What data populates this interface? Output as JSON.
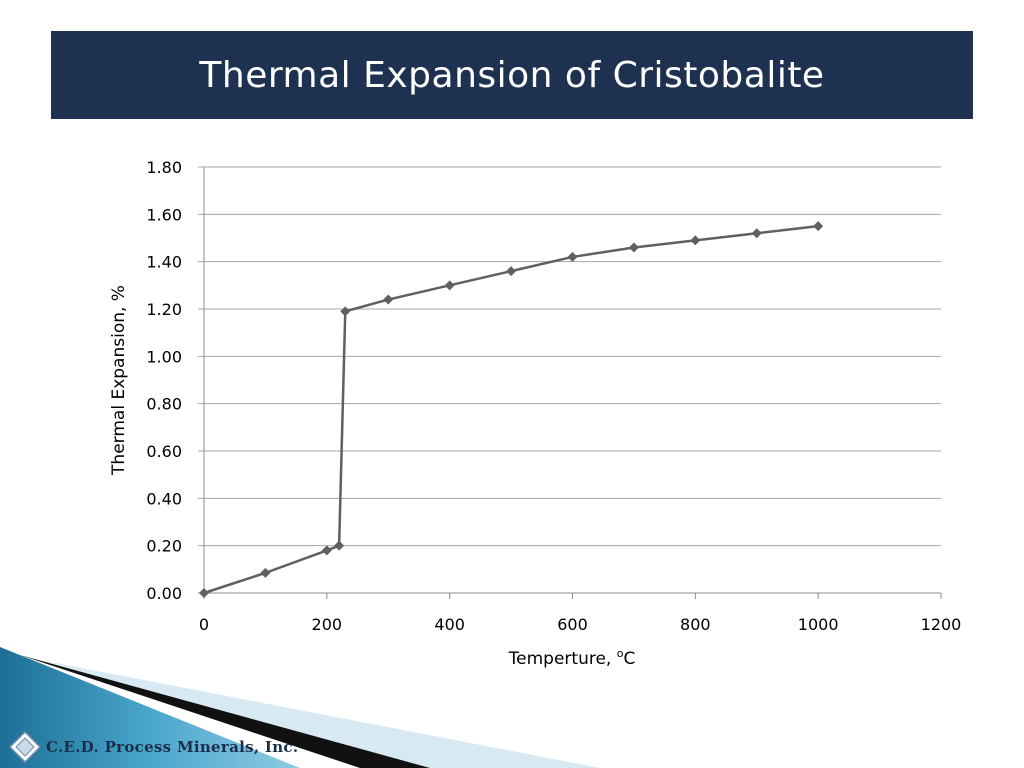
{
  "slide": {
    "title": "Thermal Expansion of Cristobalite",
    "company": "C.E.D. Process Minerals, Inc.",
    "colors": {
      "title_bar": "#1f3150",
      "series_line": "#606060",
      "grid": "#a6a6a6"
    }
  },
  "chart_data": {
    "type": "line",
    "title": "",
    "xlabel": "Temperture, ",
    "xlabel_sup": "o",
    "xlabel_unit": "C",
    "ylabel": "Thermal Expansion, %",
    "xlim": [
      0,
      1200
    ],
    "ylim": [
      0,
      1.8
    ],
    "x_ticks": [
      "0",
      "200",
      "400",
      "600",
      "800",
      "1000",
      "1200"
    ],
    "y_ticks": [
      "0.00",
      "0.20",
      "0.40",
      "0.60",
      "0.80",
      "1.00",
      "1.20",
      "1.40",
      "1.60",
      "1.80"
    ],
    "grid": true,
    "legend": "none",
    "series": [
      {
        "x": [
          0,
          100,
          200,
          220,
          230,
          300,
          400,
          500,
          600,
          700,
          800,
          900,
          1000
        ],
        "y": [
          0.0,
          0.085,
          0.18,
          0.2,
          1.19,
          1.24,
          1.3,
          1.36,
          1.42,
          1.46,
          1.49,
          1.52,
          1.55
        ],
        "marker": "diamond"
      }
    ]
  }
}
